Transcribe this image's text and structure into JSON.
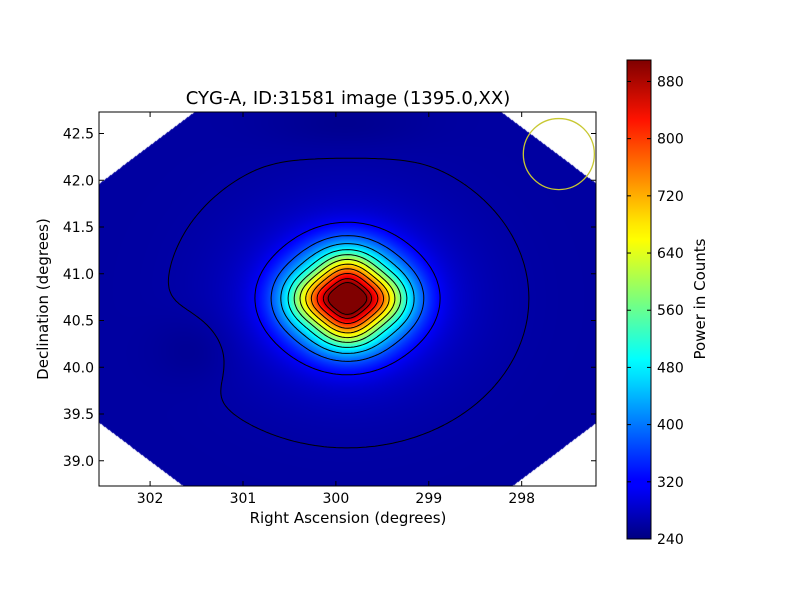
{
  "chart_data": {
    "type": "heatmap",
    "title": "CYG-A, ID:31581 image (1395.0,XX)",
    "xlabel": "Right Ascension (degrees)",
    "ylabel": "Declination (degrees)",
    "xlim": [
      302.55,
      297.2
    ],
    "ylim": [
      38.73,
      42.73
    ],
    "x_ticks": [
      302,
      301,
      300,
      299,
      298
    ],
    "x_tick_labels": [
      "302",
      "301",
      "300",
      "299",
      "298"
    ],
    "y_ticks": [
      39.0,
      39.5,
      40.0,
      40.5,
      41.0,
      41.5,
      42.0,
      42.5
    ],
    "y_tick_labels": [
      "39.0",
      "39.5",
      "40.0",
      "40.5",
      "41.0",
      "41.5",
      "42.0",
      "42.5"
    ],
    "colorbar": {
      "label": "Power in Counts",
      "range": [
        240,
        910
      ],
      "ticks": [
        240,
        320,
        400,
        480,
        560,
        640,
        720,
        800,
        880
      ],
      "tick_labels": [
        "240",
        "320",
        "400",
        "480",
        "560",
        "640",
        "720",
        "800",
        "880"
      ]
    },
    "colormap": "jet",
    "source": {
      "name": "CYG-A",
      "ra": 299.87,
      "dec": 40.73,
      "peak": 910
    },
    "background_level": 262,
    "contour_levels": [
      265,
      320,
      380,
      440,
      500,
      560,
      620,
      680,
      740,
      800,
      860,
      900
    ],
    "beam_circle": {
      "ra": 297.6,
      "dec": 42.28,
      "radius_deg": 0.38,
      "color": "#c8c832"
    }
  }
}
